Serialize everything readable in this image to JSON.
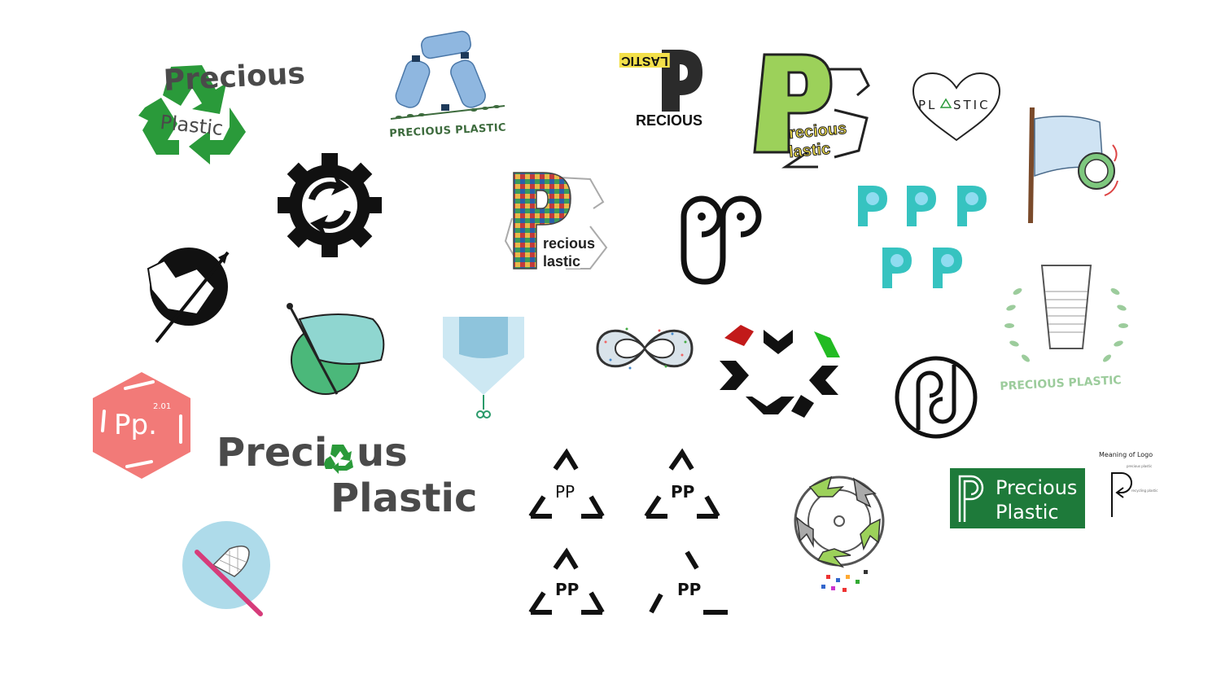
{
  "logos": {
    "recycle_precious": {
      "line1": "Precious",
      "line2": "Plastic"
    },
    "bottles_wreath": {
      "caption": "PRECIOUS PLASTIC"
    },
    "flipped_p": {
      "top": "LASTIC",
      "bottom": "RECIOUS"
    },
    "big_green_p": {
      "line1": "recious",
      "line2": "lastic"
    },
    "heart": {
      "text": "PL",
      "text2": "STIC"
    },
    "pp_face": {
      "text": "PP"
    },
    "mosaic_p": {
      "line1": "recious",
      "line2": "lastic"
    },
    "cup_wreath": {
      "caption": "PRECIOUS PLASTIC"
    },
    "hex": {
      "text": "Pp.",
      "version": "2.01"
    },
    "wordmark": {
      "line1a": "Preci",
      "line1b": "us",
      "line2": "Plastic"
    },
    "triangles": {
      "text": "PP"
    },
    "green_box": {
      "line1": "Precious",
      "line2": "Plastic"
    },
    "meaning": {
      "title": "Meaning of Logo",
      "side": "precious plastic",
      "side2": "recycling plastic"
    }
  },
  "colors": {
    "recycle_green": "#2a9a3a",
    "teal": "#36c3c0",
    "salmon": "#f27a78",
    "lime": "#9cd15a",
    "dark": "#111111",
    "gray_text": "#4a4a4a",
    "box_green": "#1e7a3a",
    "pale_green": "#9ccc9c",
    "light_blue": "#aedbea"
  }
}
